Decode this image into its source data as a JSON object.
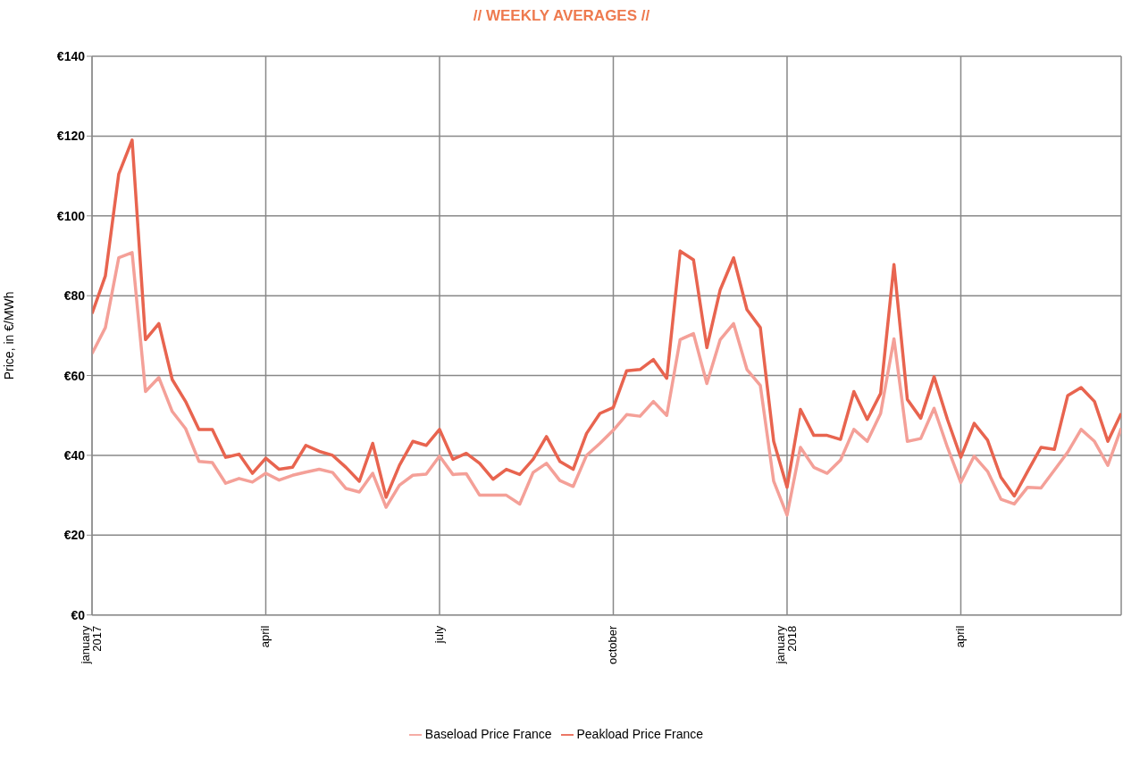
{
  "chart_data": {
    "type": "line",
    "title": "// WEEKLY AVERAGES //",
    "ylabel": "Price, in €/MWh",
    "categories": [
      "january 2017",
      null,
      null,
      null,
      null,
      null,
      null,
      null,
      null,
      null,
      null,
      null,
      null,
      "april",
      null,
      null,
      null,
      null,
      null,
      null,
      null,
      null,
      null,
      null,
      null,
      null,
      "july",
      null,
      null,
      null,
      null,
      null,
      null,
      null,
      null,
      null,
      null,
      null,
      null,
      "october",
      null,
      null,
      null,
      null,
      null,
      null,
      null,
      null,
      null,
      null,
      null,
      null,
      "january 2018",
      null,
      null,
      null,
      null,
      null,
      null,
      null,
      null,
      null,
      null,
      null,
      null,
      "april",
      null,
      null,
      null,
      null,
      null,
      null,
      null,
      null,
      null,
      null,
      null,
      null
    ],
    "series": [
      {
        "name": "Baseload Price France",
        "color": "#f4a098",
        "values": [
          65.5,
          72,
          89.5,
          90.8,
          56,
          59.5,
          51,
          46.7,
          38.5,
          38.2,
          33,
          34.2,
          33.3,
          35.5,
          33.8,
          35,
          35.8,
          36.5,
          35.7,
          31.7,
          30.8,
          35.5,
          27,
          32.5,
          35,
          35.3,
          39.8,
          35.2,
          35.4,
          30,
          30,
          30,
          27.8,
          35.7,
          38,
          33.7,
          32.2,
          40,
          43,
          46.3,
          50.2,
          49.8,
          53.5,
          50,
          69,
          70.5,
          58,
          69,
          73,
          61.5,
          57.5,
          33.5,
          25,
          42,
          37,
          35.5,
          38.8,
          46.5,
          43.5,
          50.5,
          69.2,
          43.5,
          44.2,
          51.8,
          42,
          33.2,
          39.8,
          36,
          29,
          27.8,
          32,
          31.8,
          36.3,
          40.8,
          46.5,
          43.5,
          37.5,
          46.8
        ]
      },
      {
        "name": "Peakload Price France",
        "color": "#e8644f",
        "values": [
          75.5,
          85,
          110.5,
          119,
          69,
          73,
          59,
          53.5,
          46.5,
          46.5,
          39.5,
          40.3,
          35.5,
          39.3,
          36.5,
          37,
          42.5,
          41,
          40,
          37,
          33.5,
          43,
          29.5,
          37.5,
          43.5,
          42.5,
          46.5,
          39,
          40.5,
          38,
          34,
          36.5,
          35.2,
          39,
          44.7,
          38.5,
          36.5,
          45.5,
          50.5,
          52,
          61.2,
          61.5,
          64,
          59.3,
          91.2,
          89,
          67,
          81.5,
          89.5,
          76.5,
          72,
          43.5,
          32,
          51.5,
          45,
          45,
          44,
          56,
          49,
          55.5,
          87.8,
          54,
          49.3,
          59.7,
          49,
          39.5,
          48,
          43.8,
          34.5,
          29.8,
          36,
          42,
          41.5,
          55,
          57,
          53.5,
          43.5,
          50.5
        ]
      }
    ],
    "ylim": [
      0,
      140
    ],
    "yticks": [
      {
        "value": 0,
        "label": "€0"
      },
      {
        "value": 20,
        "label": "€20"
      },
      {
        "value": 40,
        "label": "€40"
      },
      {
        "value": 60,
        "label": "€60"
      },
      {
        "value": 80,
        "label": "€80"
      },
      {
        "value": 100,
        "label": "€100"
      },
      {
        "value": 120,
        "label": "€120"
      },
      {
        "value": 140,
        "label": "€140"
      }
    ],
    "grid": true,
    "legend": "bottom"
  }
}
